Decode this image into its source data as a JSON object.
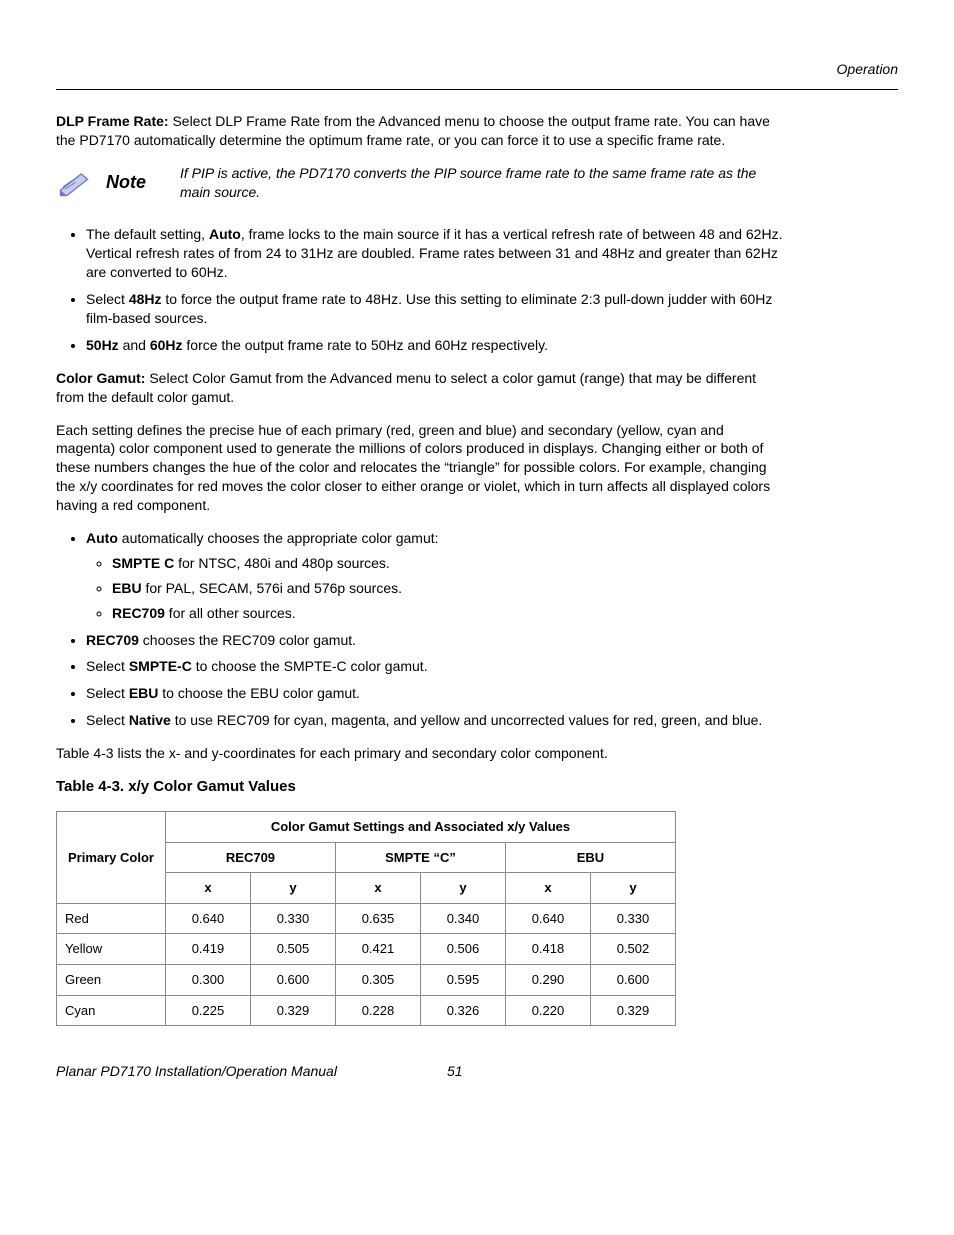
{
  "header": {
    "section": "Operation"
  },
  "intro": {
    "heading_strong": "DLP Frame Rate:",
    "heading_rest": " Select DLP Frame Rate from the Advanced menu to choose the output frame rate. You can have the PD7170 automatically determine the optimum frame rate, or you can force it to use a specific frame rate."
  },
  "note": {
    "label": "Note",
    "text": "If PIP is active, the PD7170 converts the PIP source frame rate to the same frame rate as the main source."
  },
  "frame_rate_bullets": [
    {
      "pre": "The default setting, ",
      "strong": "Auto",
      "post": ", frame locks to the main source if it has a vertical refresh rate of between 48 and 62Hz. Vertical refresh rates of from 24 to 31Hz are doubled. Frame rates between 31 and 48Hz and greater than 62Hz are converted to 60Hz."
    },
    {
      "pre": "Select ",
      "strong": "48Hz",
      "post": " to force the output frame rate to 48Hz. Use this setting to eliminate 2:3 pull-down judder with 60Hz film-based sources."
    },
    {
      "pre": "",
      "strong": "50Hz",
      "mid": " and ",
      "strong2": "60Hz",
      "post": " force the output frame rate to 50Hz and 60Hz respectively."
    }
  ],
  "color_gamut": {
    "heading_strong": "Color Gamut:",
    "heading_rest": " Select Color Gamut from the Advanced menu to select a color gamut (range) that may be different from the default color gamut.",
    "para2": "Each setting defines the precise hue of each primary (red, green and blue) and secondary (yellow, cyan and magenta) color component used to generate the millions of colors produced in displays. Changing either or both of these numbers changes the hue of the color and relocates the “triangle” for possible colors. For example, changing the x/y coordinates for red moves the color closer to either orange or violet, which in turn affects all displayed colors having a red component."
  },
  "gamut_bullets": {
    "auto": {
      "strong": "Auto",
      "post": " automatically chooses the appropriate color gamut:"
    },
    "auto_sub": [
      {
        "strong": "SMPTE C",
        "post": " for NTSC, 480i and 480p sources."
      },
      {
        "strong": "EBU",
        "post": " for PAL, SECAM, 576i and 576p sources."
      },
      {
        "strong": "REC709",
        "post": " for all other sources."
      }
    ],
    "rec709": {
      "strong": "REC709",
      "post": " chooses the REC709 color gamut."
    },
    "smptec": {
      "pre": "Select ",
      "strong": "SMPTE-C",
      "post": " to choose the SMPTE-C color gamut."
    },
    "ebu": {
      "pre": "Select ",
      "strong": "EBU",
      "post": " to choose the EBU color gamut."
    },
    "native": {
      "pre": "Select ",
      "strong": "Native",
      "post": " to use REC709 for cyan, magenta, and yellow and uncorrected values for red, green, and blue."
    }
  },
  "table_intro": "Table 4-3 lists the x- and y-coordinates for each primary and secondary color component.",
  "table": {
    "title": "Table 4-3. x/y Color Gamut Values",
    "header_main": "Color Gamut Settings and Associated x/y Values",
    "corner": "Primary Color",
    "groups": [
      "REC709",
      "SMPTE “C”",
      "EBU"
    ],
    "sub": [
      "x",
      "y"
    ],
    "rows": [
      {
        "label": "Red",
        "vals": [
          "0.640",
          "0.330",
          "0.635",
          "0.340",
          "0.640",
          "0.330"
        ]
      },
      {
        "label": "Yellow",
        "vals": [
          "0.419",
          "0.505",
          "0.421",
          "0.506",
          "0.418",
          "0.502"
        ]
      },
      {
        "label": "Green",
        "vals": [
          "0.300",
          "0.600",
          "0.305",
          "0.595",
          "0.290",
          "0.600"
        ]
      },
      {
        "label": "Cyan",
        "vals": [
          "0.225",
          "0.329",
          "0.228",
          "0.326",
          "0.220",
          "0.329"
        ]
      }
    ],
    "col_widths": [
      "100px",
      "78px",
      "78px",
      "78px",
      "78px",
      "78px",
      "78px"
    ]
  },
  "footer": {
    "title": "Planar PD7170 Installation/Operation Manual",
    "page": "51"
  },
  "colors": {
    "text": "#000000",
    "rule": "#000000",
    "table_border": "#8a8a8a",
    "note_icon_fill": "#b3b9e8",
    "note_icon_stroke": "#4a5bb0"
  }
}
